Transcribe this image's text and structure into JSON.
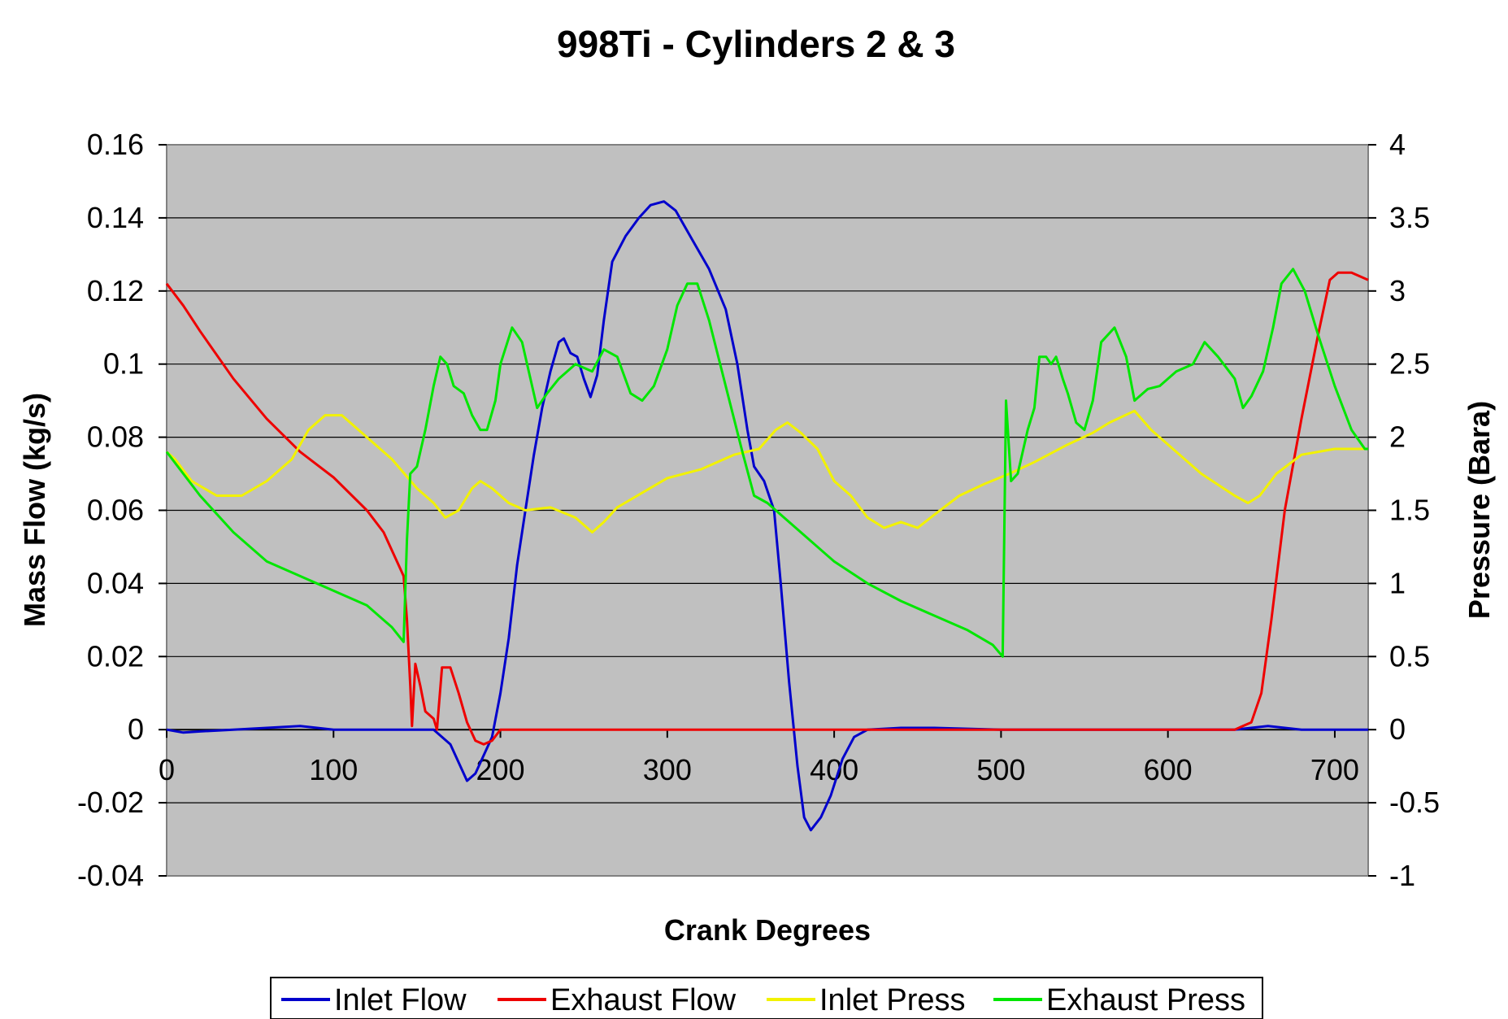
{
  "chart_data": {
    "type": "line",
    "title": "998Ti - Cylinders 2 & 3",
    "xlabel": "Crank Degrees",
    "ylabel_left": "Mass Flow (kg/s)",
    "ylabel_right": "Pressure (Bara)",
    "xlim": [
      0,
      720
    ],
    "ylim_left": [
      -0.04,
      0.16
    ],
    "ylim_right": [
      -1,
      4
    ],
    "x_ticks": [
      "0",
      "100",
      "200",
      "300",
      "400",
      "500",
      "600",
      "700"
    ],
    "y_left_ticks": [
      "0.16",
      "0.14",
      "0.12",
      "0.1",
      "0.08",
      "0.06",
      "0.04",
      "0.02",
      "0",
      "-0.02",
      "-0.04"
    ],
    "y_right_ticks": [
      "4",
      "3.5",
      "3",
      "2.5",
      "2",
      "1.5",
      "1",
      "0.5",
      "0",
      "-0.5",
      "-1"
    ],
    "grid": "horizontal",
    "plot_background": "#c0c0c0",
    "legend_position": "bottom",
    "series": [
      {
        "name": "Inlet Flow",
        "axis": "left",
        "color": "#0000cc",
        "points": [
          [
            0,
            0
          ],
          [
            10,
            -0.0008
          ],
          [
            20,
            -0.0005
          ],
          [
            40,
            0
          ],
          [
            60,
            0.0005
          ],
          [
            80,
            0.001
          ],
          [
            100,
            0
          ],
          [
            120,
            0
          ],
          [
            140,
            0
          ],
          [
            160,
            0
          ],
          [
            170,
            -0.004
          ],
          [
            180,
            -0.014
          ],
          [
            185,
            -0.012
          ],
          [
            195,
            -0.002
          ],
          [
            200,
            0.01
          ],
          [
            205,
            0.025
          ],
          [
            210,
            0.045
          ],
          [
            215,
            0.06
          ],
          [
            220,
            0.075
          ],
          [
            225,
            0.088
          ],
          [
            230,
            0.098
          ],
          [
            235,
            0.106
          ],
          [
            238,
            0.107
          ],
          [
            242,
            0.103
          ],
          [
            246,
            0.102
          ],
          [
            250,
            0.096
          ],
          [
            254,
            0.091
          ],
          [
            258,
            0.097
          ],
          [
            262,
            0.112
          ],
          [
            267,
            0.128
          ],
          [
            275,
            0.135
          ],
          [
            283,
            0.14
          ],
          [
            290,
            0.1435
          ],
          [
            298,
            0.1445
          ],
          [
            305,
            0.142
          ],
          [
            315,
            0.134
          ],
          [
            325,
            0.126
          ],
          [
            335,
            0.115
          ],
          [
            342,
            0.1
          ],
          [
            348,
            0.082
          ],
          [
            352,
            0.072
          ],
          [
            358,
            0.068
          ],
          [
            364,
            0.06
          ],
          [
            368,
            0.04
          ],
          [
            373,
            0.013
          ],
          [
            378,
            -0.01
          ],
          [
            382,
            -0.024
          ],
          [
            386,
            -0.0275
          ],
          [
            392,
            -0.024
          ],
          [
            398,
            -0.018
          ],
          [
            405,
            -0.008
          ],
          [
            412,
            -0.002
          ],
          [
            420,
            0
          ],
          [
            440,
            0.0005
          ],
          [
            460,
            0.0005
          ],
          [
            500,
            0
          ],
          [
            550,
            0
          ],
          [
            600,
            0
          ],
          [
            640,
            0
          ],
          [
            660,
            0.001
          ],
          [
            680,
            0
          ],
          [
            720,
            0
          ]
        ]
      },
      {
        "name": "Exhaust Flow",
        "axis": "left",
        "color": "#ee0000",
        "points": [
          [
            0,
            0.122
          ],
          [
            10,
            0.116
          ],
          [
            20,
            0.109
          ],
          [
            40,
            0.096
          ],
          [
            60,
            0.085
          ],
          [
            80,
            0.076
          ],
          [
            100,
            0.069
          ],
          [
            120,
            0.06
          ],
          [
            130,
            0.054
          ],
          [
            138,
            0.046
          ],
          [
            142,
            0.042
          ],
          [
            144,
            0.03
          ],
          [
            146,
            0.012
          ],
          [
            147,
            0.001
          ],
          [
            149,
            0.018
          ],
          [
            152,
            0.012
          ],
          [
            155,
            0.005
          ],
          [
            160,
            0.003
          ],
          [
            162,
            0
          ],
          [
            165,
            0.017
          ],
          [
            170,
            0.017
          ],
          [
            175,
            0.01
          ],
          [
            180,
            0.002
          ],
          [
            185,
            -0.003
          ],
          [
            190,
            -0.004
          ],
          [
            195,
            -0.003
          ],
          [
            200,
            0
          ],
          [
            250,
            0
          ],
          [
            300,
            0
          ],
          [
            400,
            0
          ],
          [
            500,
            0
          ],
          [
            600,
            0
          ],
          [
            640,
            0
          ],
          [
            650,
            0.002
          ],
          [
            656,
            0.01
          ],
          [
            662,
            0.03
          ],
          [
            670,
            0.06
          ],
          [
            680,
            0.085
          ],
          [
            690,
            0.108
          ],
          [
            697,
            0.123
          ],
          [
            702,
            0.125
          ],
          [
            710,
            0.125
          ],
          [
            720,
            0.123
          ]
        ]
      },
      {
        "name": "Inlet Press",
        "axis": "right",
        "color": "#f2f200",
        "points": [
          [
            0,
            1.9
          ],
          [
            5,
            1.85
          ],
          [
            15,
            1.7
          ],
          [
            30,
            1.6
          ],
          [
            45,
            1.6
          ],
          [
            60,
            1.7
          ],
          [
            75,
            1.85
          ],
          [
            85,
            2.05
          ],
          [
            95,
            2.15
          ],
          [
            105,
            2.15
          ],
          [
            120,
            2.0
          ],
          [
            135,
            1.85
          ],
          [
            150,
            1.65
          ],
          [
            160,
            1.55
          ],
          [
            167,
            1.45
          ],
          [
            175,
            1.5
          ],
          [
            183,
            1.65
          ],
          [
            188,
            1.7
          ],
          [
            195,
            1.65
          ],
          [
            205,
            1.55
          ],
          [
            215,
            1.5
          ],
          [
            230,
            1.52
          ],
          [
            245,
            1.45
          ],
          [
            255,
            1.35
          ],
          [
            262,
            1.42
          ],
          [
            270,
            1.52
          ],
          [
            285,
            1.62
          ],
          [
            300,
            1.72
          ],
          [
            320,
            1.78
          ],
          [
            340,
            1.88
          ],
          [
            355,
            1.92
          ],
          [
            365,
            2.05
          ],
          [
            372,
            2.1
          ],
          [
            380,
            2.03
          ],
          [
            390,
            1.92
          ],
          [
            400,
            1.7
          ],
          [
            410,
            1.6
          ],
          [
            420,
            1.45
          ],
          [
            430,
            1.38
          ],
          [
            440,
            1.42
          ],
          [
            450,
            1.38
          ],
          [
            460,
            1.47
          ],
          [
            475,
            1.6
          ],
          [
            490,
            1.68
          ],
          [
            505,
            1.75
          ],
          [
            520,
            1.83
          ],
          [
            540,
            1.95
          ],
          [
            555,
            2.03
          ],
          [
            565,
            2.1
          ],
          [
            580,
            2.18
          ],
          [
            590,
            2.05
          ],
          [
            600,
            1.95
          ],
          [
            620,
            1.75
          ],
          [
            640,
            1.6
          ],
          [
            648,
            1.55
          ],
          [
            655,
            1.6
          ],
          [
            665,
            1.75
          ],
          [
            680,
            1.88
          ],
          [
            700,
            1.92
          ],
          [
            720,
            1.92
          ]
        ]
      },
      {
        "name": "Exhaust Press",
        "axis": "right",
        "color": "#00e600",
        "points": [
          [
            0,
            1.9
          ],
          [
            20,
            1.6
          ],
          [
            40,
            1.35
          ],
          [
            60,
            1.15
          ],
          [
            80,
            1.05
          ],
          [
            100,
            0.95
          ],
          [
            120,
            0.85
          ],
          [
            135,
            0.7
          ],
          [
            142,
            0.6
          ],
          [
            144,
            1.3
          ],
          [
            146,
            1.75
          ],
          [
            150,
            1.8
          ],
          [
            155,
            2.05
          ],
          [
            160,
            2.35
          ],
          [
            164,
            2.55
          ],
          [
            168,
            2.5
          ],
          [
            172,
            2.35
          ],
          [
            178,
            2.3
          ],
          [
            183,
            2.15
          ],
          [
            188,
            2.05
          ],
          [
            192,
            2.05
          ],
          [
            197,
            2.25
          ],
          [
            200,
            2.5
          ],
          [
            207,
            2.75
          ],
          [
            213,
            2.65
          ],
          [
            218,
            2.4
          ],
          [
            222,
            2.2
          ],
          [
            228,
            2.3
          ],
          [
            235,
            2.4
          ],
          [
            245,
            2.5
          ],
          [
            255,
            2.45
          ],
          [
            262,
            2.6
          ],
          [
            270,
            2.55
          ],
          [
            278,
            2.3
          ],
          [
            285,
            2.25
          ],
          [
            292,
            2.35
          ],
          [
            300,
            2.6
          ],
          [
            306,
            2.9
          ],
          [
            312,
            3.05
          ],
          [
            318,
            3.05
          ],
          [
            325,
            2.8
          ],
          [
            335,
            2.35
          ],
          [
            345,
            1.9
          ],
          [
            352,
            1.6
          ],
          [
            360,
            1.55
          ],
          [
            380,
            1.35
          ],
          [
            400,
            1.15
          ],
          [
            420,
            1.0
          ],
          [
            440,
            0.88
          ],
          [
            460,
            0.78
          ],
          [
            480,
            0.68
          ],
          [
            495,
            0.58
          ],
          [
            501,
            0.5
          ],
          [
            503,
            2.25
          ],
          [
            506,
            1.7
          ],
          [
            510,
            1.75
          ],
          [
            516,
            2.05
          ],
          [
            520,
            2.2
          ],
          [
            523,
            2.55
          ],
          [
            527,
            2.55
          ],
          [
            530,
            2.5
          ],
          [
            533,
            2.55
          ],
          [
            537,
            2.4
          ],
          [
            540,
            2.3
          ],
          [
            545,
            2.1
          ],
          [
            550,
            2.05
          ],
          [
            555,
            2.25
          ],
          [
            560,
            2.65
          ],
          [
            568,
            2.75
          ],
          [
            575,
            2.55
          ],
          [
            580,
            2.25
          ],
          [
            588,
            2.33
          ],
          [
            595,
            2.35
          ],
          [
            605,
            2.45
          ],
          [
            615,
            2.5
          ],
          [
            622,
            2.65
          ],
          [
            630,
            2.55
          ],
          [
            640,
            2.4
          ],
          [
            645,
            2.2
          ],
          [
            650,
            2.28
          ],
          [
            657,
            2.45
          ],
          [
            663,
            2.75
          ],
          [
            668,
            3.05
          ],
          [
            675,
            3.15
          ],
          [
            682,
            3.0
          ],
          [
            690,
            2.7
          ],
          [
            700,
            2.35
          ],
          [
            710,
            2.05
          ],
          [
            718,
            1.92
          ],
          [
            720,
            1.92
          ]
        ]
      }
    ]
  }
}
